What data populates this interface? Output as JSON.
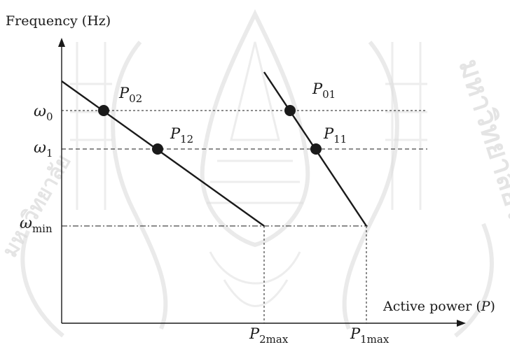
{
  "axes": {
    "y_title": "Frequency (Hz)",
    "x_title": "Active power (",
    "x_title_var": "P",
    "x_title_close": ")"
  },
  "levels": {
    "w0": {
      "symbol": "ω",
      "sub": "0"
    },
    "w1": {
      "symbol": "ω",
      "sub": "1"
    },
    "wmin": {
      "symbol": "ω",
      "sub": "min"
    }
  },
  "x_marks": {
    "p2max": {
      "symbol": "P",
      "sub": "2max"
    },
    "p1max": {
      "symbol": "P",
      "sub": "1max"
    }
  },
  "points": {
    "p02": {
      "symbol": "P",
      "sub": "02"
    },
    "p12": {
      "symbol": "P",
      "sub": "12"
    },
    "p01": {
      "symbol": "P",
      "sub": "01"
    },
    "p11": {
      "symbol": "P",
      "sub": "11"
    }
  },
  "watermark": {
    "style": "university seal",
    "text_right": "มหาวิทยาลัยราช",
    "text_left": "มหาวิทยาลัย"
  },
  "colors": {
    "ink": "#1a1a1a",
    "watermark": "#d8d8d8"
  }
}
